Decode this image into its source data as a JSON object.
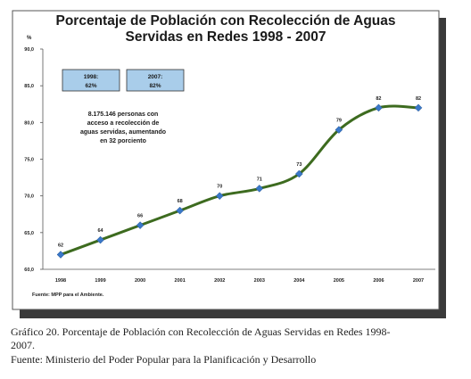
{
  "chart_data": {
    "type": "line",
    "title_line1": "Porcentaje de Población con Recolección de Aguas",
    "title_line2": "Servidas en Redes  1998 - 2007",
    "ylabel": "%",
    "categories": [
      "1998",
      "1999",
      "2000",
      "2001",
      "2002",
      "2003",
      "2004",
      "2005",
      "2006",
      "2007"
    ],
    "values": [
      62,
      64,
      66,
      68,
      70,
      71,
      73,
      79,
      82,
      82
    ],
    "data_labels": [
      "62",
      "64",
      "66",
      "68",
      "70",
      "71",
      "73",
      "79",
      "82",
      "82"
    ],
    "ylim": [
      60,
      90
    ],
    "yticks": [
      "60,0",
      "65,0",
      "70,0",
      "75,0",
      "80,0",
      "85,0",
      "90,0"
    ],
    "ytick_values": [
      60,
      65,
      70,
      75,
      80,
      85,
      90
    ],
    "grid": false,
    "line_color": "#3d6b1f",
    "marker_color": "#3a78c8",
    "boxes": [
      {
        "year": "1998:",
        "value": "62%"
      },
      {
        "year": "2007:",
        "value": "82%"
      }
    ],
    "box_color": "#a9cdea",
    "note_lines": [
      "8.175.146 personas  con",
      "acceso a recolección de",
      "aguas servidas, aumentando",
      "en 32 porciento"
    ],
    "source": "Fuente: MPP para el Ambiente."
  },
  "caption": {
    "line1": "Gráfico 20. Porcentaje de Población con Recolección de Aguas Servidas en Redes 1998-",
    "line2": "2007.",
    "line3": "Fuente: Ministerio del Poder Popular para la Planificación y Desarrollo"
  }
}
